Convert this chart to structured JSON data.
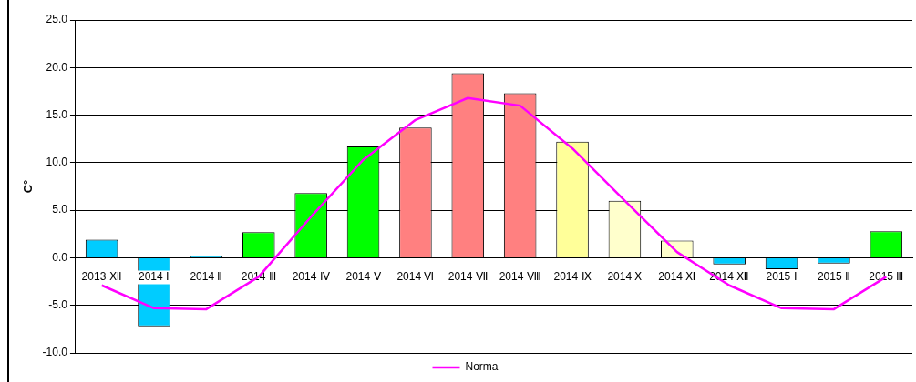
{
  "chart_data": {
    "type": "bar",
    "ylabel": "C°",
    "categories": [
      "2013 Ⅻ",
      "2014 Ⅰ",
      "2014 Ⅱ",
      "2014 Ⅲ",
      "2014 Ⅳ",
      "2014 Ⅴ",
      "2014 Ⅵ",
      "2014 Ⅶ",
      "2014 Ⅷ",
      "2014 Ⅸ",
      "2014 Ⅹ",
      "2014 Ⅺ",
      "2014 Ⅻ",
      "2015 Ⅰ",
      "2015 Ⅱ",
      "2015 Ⅲ"
    ],
    "series": [
      {
        "values": [
          1.9,
          -7.2,
          0.2,
          2.7,
          6.8,
          11.7,
          13.7,
          19.4,
          17.3,
          12.2,
          6.0,
          1.8,
          -0.7,
          -1.2,
          -0.6,
          2.8
        ],
        "colors": [
          "#00ccff",
          "#00ccff",
          "#00ccff",
          "#00ff00",
          "#00ff00",
          "#00ff00",
          "#ff8080",
          "#ff8080",
          "#ff8080",
          "#ffff99",
          "#ffffcc",
          "#ffffcc",
          "#00ccff",
          "#00ccff",
          "#00ccff",
          "#00ff00"
        ]
      },
      {
        "type": "line",
        "name": "Norma",
        "color": "#ff00ff",
        "values": [
          -2.9,
          -5.3,
          -5.4,
          -2.0,
          4.3,
          10.3,
          14.5,
          16.8,
          16.0,
          11.5,
          6.0,
          0.6,
          -2.9,
          -5.3,
          -5.4,
          -2.0
        ]
      }
    ],
    "ylim": [
      -10,
      25
    ],
    "yticks": [
      {
        "value": -10,
        "label": "-10.0"
      },
      {
        "value": -5,
        "label": "-5.0"
      },
      {
        "value": 0,
        "label": "0.0"
      },
      {
        "value": 5,
        "label": "5.0"
      },
      {
        "value": 10,
        "label": "10.0"
      },
      {
        "value": 15,
        "label": "15.0"
      },
      {
        "value": 20,
        "label": "20.0"
      },
      {
        "value": 25,
        "label": "25.0"
      }
    ],
    "grid": "y",
    "legend": "bottom",
    "marker": "none"
  }
}
